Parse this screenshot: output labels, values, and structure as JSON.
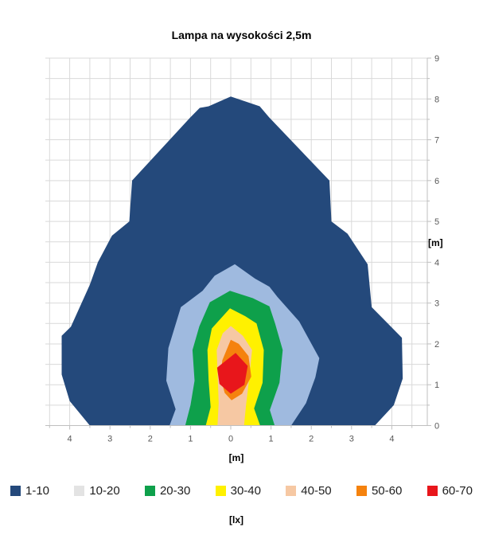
{
  "title": "Lampa na wysokości 2,5m",
  "axes": {
    "x": {
      "unit_label": "[m]",
      "tick_values": [
        -4,
        -3,
        -2,
        -1,
        0,
        1,
        2,
        3,
        4
      ],
      "tick_labels": [
        "4",
        "3",
        "2",
        "1",
        "0",
        "1",
        "2",
        "3",
        "4"
      ],
      "grid_step": 0.5,
      "grid_min": -4.5,
      "grid_max": 4.5
    },
    "y": {
      "unit_label": "[m]",
      "tick_values": [
        0,
        1,
        2,
        3,
        4,
        5,
        6,
        7,
        8,
        9
      ],
      "tick_labels": [
        "0",
        "1",
        "2",
        "3",
        "4",
        "5",
        "6",
        "7",
        "8",
        "9"
      ],
      "grid_step": 0.5,
      "grid_min": 0,
      "grid_max": 9
    }
  },
  "legend": {
    "unit_label": "[lx]",
    "items": [
      {
        "label": "1-10",
        "color": "#24497B"
      },
      {
        "label": "10-20",
        "color": "#E3E3E3"
      },
      {
        "label": "20-30",
        "color": "#0EA04B"
      },
      {
        "label": "30-40",
        "color": "#FFF100"
      },
      {
        "label": "40-50",
        "color": "#F6C8A3"
      },
      {
        "label": "50-60",
        "color": "#F5820D"
      },
      {
        "label": "60-70",
        "color": "#E8161B"
      }
    ]
  },
  "colors": {
    "gridline": "#D9D9D9",
    "axis_line": "#BFBFBF",
    "tick_label": "#595959",
    "background": "#FFFFFF"
  },
  "chart_data": {
    "type": "contour",
    "title": "Lampa na wysokości 2,5m",
    "xlabel": "[m]",
    "ylabel": "[m]",
    "units": "lx",
    "xlim": [
      -4.6,
      4.87
    ],
    "ylim": [
      0,
      9
    ],
    "grid": true,
    "grid_step": 0.5,
    "legend_position": "bottom",
    "bands": [
      {
        "range": "1-10",
        "min": 1,
        "max": 10,
        "color": "#24497B",
        "legend_color": "#24497B",
        "polygon": [
          [
            -3.5,
            0
          ],
          [
            -4.0,
            0.6
          ],
          [
            -4.2,
            1.25
          ],
          [
            -4.2,
            2.2
          ],
          [
            -3.97,
            2.42
          ],
          [
            -3.5,
            3.45
          ],
          [
            -3.3,
            4.0
          ],
          [
            -2.95,
            4.65
          ],
          [
            -2.52,
            5.0
          ],
          [
            -2.45,
            6.0
          ],
          [
            -1.0,
            7.55
          ],
          [
            -0.77,
            7.78
          ],
          [
            -0.55,
            7.82
          ],
          [
            0.0,
            8.06
          ],
          [
            0.72,
            7.82
          ],
          [
            0.95,
            7.55
          ],
          [
            2.45,
            6.0
          ],
          [
            2.5,
            5.0
          ],
          [
            2.9,
            4.7
          ],
          [
            3.4,
            3.95
          ],
          [
            3.5,
            2.9
          ],
          [
            4.25,
            2.15
          ],
          [
            4.27,
            1.15
          ],
          [
            4.05,
            0.5
          ],
          [
            3.58,
            0
          ]
        ]
      },
      {
        "range": "10-20",
        "min": 10,
        "max": 20,
        "color": "#9FBADF",
        "legend_color": "#E3E3E3",
        "polygon": [
          [
            -1.52,
            0
          ],
          [
            -1.37,
            0.4
          ],
          [
            -1.6,
            1.1
          ],
          [
            -1.55,
            1.9
          ],
          [
            -1.24,
            2.9
          ],
          [
            -0.7,
            3.3
          ],
          [
            -0.4,
            3.67
          ],
          [
            0.1,
            3.95
          ],
          [
            0.6,
            3.6
          ],
          [
            0.96,
            3.4
          ],
          [
            1.16,
            3.15
          ],
          [
            1.7,
            2.55
          ],
          [
            2.2,
            1.65
          ],
          [
            2.1,
            1.18
          ],
          [
            1.87,
            0.55
          ],
          [
            1.5,
            0
          ]
        ]
      },
      {
        "range": "20-30",
        "min": 20,
        "max": 30,
        "color": "#0EA04B",
        "legend_color": "#0EA04B",
        "polygon": [
          [
            -1.13,
            0
          ],
          [
            -1.0,
            0.5
          ],
          [
            -0.9,
            1.1
          ],
          [
            -0.95,
            1.85
          ],
          [
            -0.78,
            2.43
          ],
          [
            -0.52,
            3.02
          ],
          [
            -0.02,
            3.3
          ],
          [
            0.55,
            3.12
          ],
          [
            0.96,
            2.92
          ],
          [
            1.1,
            2.5
          ],
          [
            1.29,
            1.85
          ],
          [
            1.21,
            1.05
          ],
          [
            0.97,
            0.38
          ],
          [
            1.09,
            0
          ]
        ]
      },
      {
        "range": "30-40",
        "min": 30,
        "max": 40,
        "color": "#FFF100",
        "legend_color": "#FFF100",
        "polygon": [
          [
            -0.62,
            0
          ],
          [
            -0.5,
            0.45
          ],
          [
            -0.55,
            1.1
          ],
          [
            -0.58,
            1.85
          ],
          [
            -0.47,
            2.38
          ],
          [
            -0.02,
            2.87
          ],
          [
            0.36,
            2.68
          ],
          [
            0.64,
            2.5
          ],
          [
            0.82,
            1.85
          ],
          [
            0.79,
            1.05
          ],
          [
            0.58,
            0.42
          ],
          [
            0.73,
            0
          ]
        ]
      },
      {
        "range": "40-50",
        "min": 40,
        "max": 50,
        "color": "#F6C8A3",
        "legend_color": "#F6C8A3",
        "polygon": [
          [
            -0.33,
            0
          ],
          [
            -0.3,
            0.55
          ],
          [
            -0.32,
            1.1
          ],
          [
            -0.35,
            1.85
          ],
          [
            -0.2,
            2.26
          ],
          [
            0.0,
            2.44
          ],
          [
            0.3,
            2.2
          ],
          [
            0.53,
            1.85
          ],
          [
            0.44,
            1.0
          ],
          [
            0.38,
            0.5
          ],
          [
            0.33,
            0
          ]
        ]
      },
      {
        "range": "50-60",
        "min": 50,
        "max": 60,
        "color": "#F5820D",
        "legend_color": "#F5820D",
        "polygon": [
          [
            0.0,
            2.1
          ],
          [
            -0.21,
            1.6
          ],
          [
            -0.26,
            1.2
          ],
          [
            -0.15,
            0.8
          ],
          [
            0.02,
            0.62
          ],
          [
            0.28,
            0.78
          ],
          [
            0.51,
            1.2
          ],
          [
            0.44,
            1.7
          ],
          [
            0.2,
            2.0
          ]
        ]
      },
      {
        "range": "60-70",
        "min": 60,
        "max": 70,
        "color": "#E8161B",
        "legend_color": "#E8161B",
        "polygon": [
          [
            0.12,
            1.78
          ],
          [
            0.42,
            1.46
          ],
          [
            0.34,
            1.0
          ],
          [
            0.0,
            0.78
          ],
          [
            -0.28,
            1.02
          ],
          [
            -0.34,
            1.42
          ]
        ]
      }
    ]
  }
}
